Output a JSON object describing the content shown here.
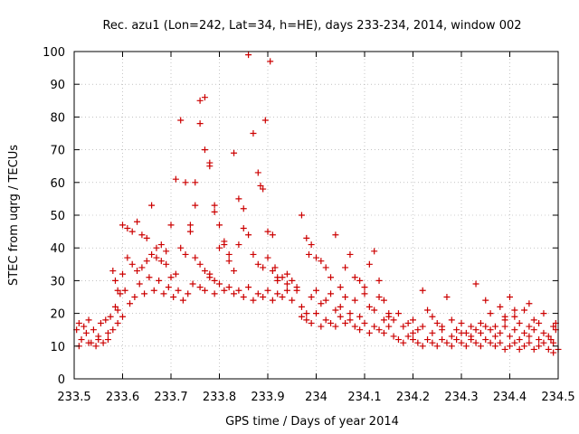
{
  "chart_data": {
    "type": "scatter",
    "title": "Rec. azu1 (Lon=242, Lat=34, h=HE), days 233-234, 2014, window 002",
    "xlabel": "GPS time / Days of year 2014",
    "ylabel": "STEC from uqrg / TECUs",
    "xlim": [
      233.5,
      234.5
    ],
    "ylim": [
      0,
      100
    ],
    "x_ticks": [
      "233.5",
      "233.6",
      "233.7",
      "233.8",
      "233.9",
      "234",
      "234.1",
      "234.2",
      "234.3",
      "234.4",
      "234.5"
    ],
    "y_ticks": [
      "0",
      "10",
      "20",
      "30",
      "40",
      "50",
      "60",
      "70",
      "80",
      "90",
      "100"
    ],
    "grid": true,
    "marker": "plus",
    "color": "#cc0000",
    "series": [
      {
        "values": [
          [
            233.505,
            15
          ],
          [
            233.51,
            17
          ],
          [
            233.515,
            12
          ],
          [
            233.52,
            16
          ],
          [
            233.525,
            14
          ],
          [
            233.53,
            18
          ],
          [
            233.535,
            11
          ],
          [
            233.54,
            15
          ],
          [
            233.545,
            10
          ],
          [
            233.55,
            13
          ],
          [
            233.555,
            17
          ],
          [
            233.56,
            11
          ],
          [
            233.565,
            18
          ],
          [
            233.57,
            12
          ],
          [
            233.575,
            19
          ],
          [
            233.58,
            15
          ],
          [
            233.585,
            22
          ],
          [
            233.59,
            17
          ],
          [
            233.595,
            26
          ],
          [
            233.6,
            19
          ],
          [
            233.51,
            10
          ],
          [
            233.53,
            11
          ],
          [
            233.55,
            12
          ],
          [
            233.57,
            14
          ],
          [
            233.59,
            21
          ],
          [
            233.605,
            27
          ],
          [
            233.615,
            23
          ],
          [
            233.625,
            25
          ],
          [
            233.635,
            29
          ],
          [
            233.645,
            26
          ],
          [
            233.655,
            31
          ],
          [
            233.665,
            27
          ],
          [
            233.675,
            30
          ],
          [
            233.685,
            26
          ],
          [
            233.695,
            28
          ],
          [
            233.705,
            25
          ],
          [
            233.715,
            27
          ],
          [
            233.725,
            24
          ],
          [
            233.735,
            26
          ],
          [
            233.745,
            29
          ],
          [
            233.6,
            47
          ],
          [
            233.61,
            46
          ],
          [
            233.62,
            45
          ],
          [
            233.63,
            48
          ],
          [
            233.64,
            44
          ],
          [
            233.65,
            43
          ],
          [
            233.66,
            53
          ],
          [
            233.67,
            37
          ],
          [
            233.68,
            41
          ],
          [
            233.69,
            35
          ],
          [
            233.7,
            47
          ],
          [
            233.71,
            61
          ],
          [
            233.72,
            79
          ],
          [
            233.73,
            60
          ],
          [
            233.74,
            47
          ],
          [
            233.75,
            60
          ],
          [
            233.76,
            85
          ],
          [
            233.77,
            86
          ],
          [
            233.78,
            65
          ],
          [
            233.79,
            53
          ],
          [
            233.58,
            33
          ],
          [
            233.585,
            30
          ],
          [
            233.59,
            27
          ],
          [
            233.6,
            32
          ],
          [
            233.61,
            37
          ],
          [
            233.62,
            35
          ],
          [
            233.63,
            33
          ],
          [
            233.64,
            34
          ],
          [
            233.65,
            36
          ],
          [
            233.66,
            38
          ],
          [
            233.67,
            40
          ],
          [
            233.68,
            36
          ],
          [
            233.69,
            39
          ],
          [
            233.7,
            31
          ],
          [
            233.71,
            32
          ],
          [
            233.72,
            40
          ],
          [
            233.73,
            38
          ],
          [
            233.74,
            45
          ],
          [
            233.75,
            53
          ],
          [
            233.76,
            78
          ],
          [
            233.77,
            70
          ],
          [
            233.78,
            66
          ],
          [
            233.79,
            51
          ],
          [
            233.8,
            47
          ],
          [
            233.81,
            41
          ],
          [
            233.82,
            38
          ],
          [
            233.83,
            69
          ],
          [
            233.84,
            55
          ],
          [
            233.85,
            46
          ],
          [
            233.86,
            99
          ],
          [
            233.87,
            75
          ],
          [
            233.88,
            63
          ],
          [
            233.885,
            59
          ],
          [
            233.89,
            58
          ],
          [
            233.895,
            79
          ],
          [
            233.9,
            45
          ],
          [
            233.905,
            97
          ],
          [
            233.91,
            44
          ],
          [
            233.915,
            34
          ],
          [
            233.92,
            31
          ],
          [
            233.75,
            37
          ],
          [
            233.76,
            35
          ],
          [
            233.77,
            33
          ],
          [
            233.78,
            32
          ],
          [
            233.79,
            30
          ],
          [
            233.8,
            40
          ],
          [
            233.81,
            42
          ],
          [
            233.82,
            36
          ],
          [
            233.83,
            33
          ],
          [
            233.84,
            41
          ],
          [
            233.85,
            52
          ],
          [
            233.86,
            44
          ],
          [
            233.87,
            38
          ],
          [
            233.88,
            35
          ],
          [
            233.89,
            34
          ],
          [
            233.9,
            37
          ],
          [
            233.91,
            33
          ],
          [
            233.92,
            30
          ],
          [
            233.93,
            31
          ],
          [
            233.94,
            29
          ],
          [
            233.76,
            28
          ],
          [
            233.77,
            27
          ],
          [
            233.78,
            31
          ],
          [
            233.79,
            26
          ],
          [
            233.8,
            29
          ],
          [
            233.81,
            27
          ],
          [
            233.82,
            28
          ],
          [
            233.83,
            26
          ],
          [
            233.84,
            27
          ],
          [
            233.85,
            25
          ],
          [
            233.86,
            28
          ],
          [
            233.87,
            24
          ],
          [
            233.88,
            26
          ],
          [
            233.89,
            25
          ],
          [
            233.9,
            27
          ],
          [
            233.91,
            24
          ],
          [
            233.92,
            26
          ],
          [
            233.93,
            25
          ],
          [
            233.94,
            27
          ],
          [
            233.95,
            24
          ],
          [
            233.94,
            32
          ],
          [
            233.95,
            30
          ],
          [
            233.96,
            28
          ],
          [
            233.97,
            50
          ],
          [
            233.98,
            43
          ],
          [
            233.985,
            38
          ],
          [
            233.99,
            41
          ],
          [
            234.0,
            37
          ],
          [
            234.01,
            36
          ],
          [
            234.02,
            34
          ],
          [
            234.03,
            31
          ],
          [
            234.04,
            44
          ],
          [
            234.05,
            28
          ],
          [
            234.06,
            34
          ],
          [
            234.07,
            38
          ],
          [
            234.08,
            31
          ],
          [
            234.09,
            30
          ],
          [
            234.1,
            28
          ],
          [
            234.11,
            35
          ],
          [
            234.12,
            39
          ],
          [
            233.96,
            27
          ],
          [
            233.97,
            22
          ],
          [
            233.98,
            20
          ],
          [
            233.99,
            25
          ],
          [
            234.0,
            27
          ],
          [
            234.01,
            23
          ],
          [
            234.02,
            24
          ],
          [
            234.03,
            26
          ],
          [
            234.04,
            21
          ],
          [
            234.05,
            22
          ],
          [
            234.06,
            25
          ],
          [
            234.07,
            20
          ],
          [
            234.08,
            24
          ],
          [
            234.09,
            19
          ],
          [
            234.1,
            26
          ],
          [
            234.11,
            22
          ],
          [
            234.12,
            21
          ],
          [
            234.13,
            25
          ],
          [
            234.14,
            18
          ],
          [
            234.15,
            20
          ],
          [
            233.97,
            19
          ],
          [
            233.98,
            18
          ],
          [
            233.99,
            17
          ],
          [
            234.0,
            20
          ],
          [
            234.01,
            16
          ],
          [
            234.02,
            18
          ],
          [
            234.03,
            17
          ],
          [
            234.04,
            16
          ],
          [
            234.05,
            19
          ],
          [
            234.06,
            17
          ],
          [
            234.07,
            18
          ],
          [
            234.08,
            16
          ],
          [
            234.09,
            15
          ],
          [
            234.1,
            17
          ],
          [
            234.11,
            14
          ],
          [
            234.12,
            16
          ],
          [
            234.13,
            15
          ],
          [
            234.14,
            14
          ],
          [
            234.15,
            16
          ],
          [
            234.16,
            13
          ],
          [
            234.13,
            30
          ],
          [
            234.14,
            24
          ],
          [
            234.15,
            19
          ],
          [
            234.16,
            18
          ],
          [
            234.17,
            20
          ],
          [
            234.18,
            16
          ],
          [
            234.19,
            17
          ],
          [
            234.2,
            14
          ],
          [
            234.21,
            15
          ],
          [
            234.22,
            27
          ],
          [
            234.23,
            21
          ],
          [
            234.24,
            19
          ],
          [
            234.25,
            17
          ],
          [
            234.26,
            16
          ],
          [
            234.27,
            25
          ],
          [
            234.28,
            18
          ],
          [
            234.29,
            15
          ],
          [
            234.3,
            17
          ],
          [
            234.31,
            14
          ],
          [
            234.32,
            16
          ],
          [
            234.17,
            12
          ],
          [
            234.18,
            11
          ],
          [
            234.19,
            13
          ],
          [
            234.2,
            12
          ],
          [
            234.21,
            11
          ],
          [
            234.22,
            10
          ],
          [
            234.23,
            12
          ],
          [
            234.24,
            11
          ],
          [
            234.25,
            10
          ],
          [
            234.26,
            12
          ],
          [
            234.27,
            11
          ],
          [
            234.28,
            10
          ],
          [
            234.29,
            12
          ],
          [
            234.3,
            11
          ],
          [
            234.31,
            10
          ],
          [
            234.32,
            12
          ],
          [
            234.33,
            11
          ],
          [
            234.34,
            10
          ],
          [
            234.35,
            12
          ],
          [
            234.36,
            11
          ],
          [
            234.2,
            18
          ],
          [
            234.22,
            16
          ],
          [
            234.24,
            14
          ],
          [
            234.26,
            15
          ],
          [
            234.28,
            13
          ],
          [
            234.3,
            14
          ],
          [
            234.32,
            13
          ],
          [
            234.33,
            29
          ],
          [
            234.34,
            17
          ],
          [
            234.35,
            24
          ],
          [
            234.36,
            20
          ],
          [
            234.37,
            16
          ],
          [
            234.38,
            22
          ],
          [
            234.39,
            18
          ],
          [
            234.4,
            25
          ],
          [
            234.41,
            19
          ],
          [
            234.42,
            17
          ],
          [
            234.43,
            21
          ],
          [
            234.44,
            23
          ],
          [
            234.45,
            18
          ],
          [
            234.33,
            15
          ],
          [
            234.34,
            14
          ],
          [
            234.35,
            16
          ],
          [
            234.36,
            15
          ],
          [
            234.37,
            13
          ],
          [
            234.38,
            14
          ],
          [
            234.39,
            16
          ],
          [
            234.4,
            13
          ],
          [
            234.41,
            15
          ],
          [
            234.42,
            12
          ],
          [
            234.43,
            14
          ],
          [
            234.44,
            13
          ],
          [
            234.45,
            15
          ],
          [
            234.46,
            12
          ],
          [
            234.47,
            14
          ],
          [
            234.48,
            13
          ],
          [
            234.49,
            16
          ],
          [
            234.495,
            15
          ],
          [
            234.5,
            9
          ],
          [
            234.49,
            8
          ],
          [
            234.37,
            10
          ],
          [
            234.38,
            11
          ],
          [
            234.39,
            9
          ],
          [
            234.4,
            10
          ],
          [
            234.41,
            11
          ],
          [
            234.42,
            9
          ],
          [
            234.43,
            10
          ],
          [
            234.44,
            11
          ],
          [
            234.45,
            9
          ],
          [
            234.46,
            10
          ],
          [
            234.47,
            11
          ],
          [
            234.48,
            9
          ],
          [
            234.485,
            12
          ],
          [
            234.495,
            17
          ],
          [
            234.49,
            11
          ],
          [
            234.47,
            20
          ],
          [
            234.46,
            17
          ],
          [
            234.44,
            16
          ],
          [
            234.41,
            21
          ],
          [
            234.39,
            19
          ]
        ]
      }
    ]
  }
}
